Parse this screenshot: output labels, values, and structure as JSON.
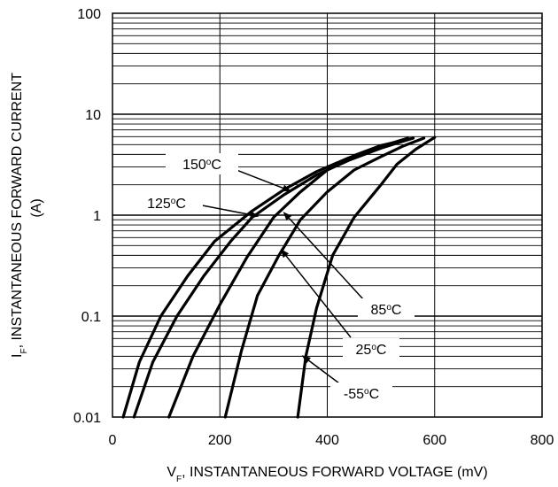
{
  "chart_data": {
    "type": "line",
    "x_axis": {
      "label_main": "V",
      "label_sub": "F",
      "label_rest": ", INSTANTANEOUS FORWARD VOLTAGE (mV)",
      "range": [
        0,
        800
      ],
      "ticks": [
        "0",
        "200",
        "400",
        "600",
        "800"
      ]
    },
    "y_axis": {
      "label_main": "I",
      "label_sub": "F",
      "label_rest": ", INSTANTANEOUS FORWARD CURRENT",
      "label_line2": "(A)",
      "scale": "log",
      "range": [
        0.01,
        100
      ],
      "ticks": [
        "0.01",
        "0.1",
        "1",
        "10",
        "100"
      ]
    },
    "grid": true,
    "series": [
      {
        "name": "150",
        "label_value": "150",
        "label_sup": "o",
        "label_unit": "C",
        "x": [
          20,
          50,
          90,
          140,
          190,
          260,
          320,
          380,
          440,
          500,
          550
        ],
        "y": [
          0.01,
          0.035,
          0.1,
          0.25,
          0.55,
          1.1,
          1.8,
          2.7,
          3.7,
          4.8,
          5.8
        ]
      },
      {
        "name": "125",
        "label_value": "125",
        "label_sup": "o",
        "label_unit": "C",
        "x": [
          40,
          75,
          120,
          170,
          220,
          260,
          320,
          380,
          440,
          500,
          560
        ],
        "y": [
          0.01,
          0.035,
          0.1,
          0.25,
          0.55,
          0.95,
          1.6,
          2.5,
          3.5,
          4.6,
          5.8
        ]
      },
      {
        "name": "85",
        "label_value": "85",
        "label_sup": "o",
        "label_unit": "C",
        "x": [
          105,
          150,
          200,
          250,
          300,
          350,
          400,
          450,
          500,
          560
        ],
        "y": [
          0.01,
          0.04,
          0.13,
          0.38,
          0.95,
          1.7,
          2.8,
          3.9,
          4.9,
          5.8
        ]
      },
      {
        "name": "25",
        "label_value": "25",
        "label_sup": "o",
        "label_unit": "C",
        "x": [
          210,
          240,
          270,
          310,
          350,
          400,
          450,
          500,
          540,
          580
        ],
        "y": [
          0.01,
          0.045,
          0.16,
          0.4,
          0.9,
          1.7,
          2.8,
          3.8,
          4.8,
          5.8
        ]
      },
      {
        "name": "-55",
        "label_value": "-55",
        "label_sup": "o",
        "label_unit": "C",
        "x": [
          345,
          360,
          380,
          410,
          450,
          500,
          530,
          565,
          600
        ],
        "y": [
          0.01,
          0.04,
          0.12,
          0.4,
          0.95,
          2.0,
          3.2,
          4.5,
          5.9
        ]
      }
    ],
    "annotations": [
      {
        "series": "150",
        "text_value": "150",
        "text_sup": "o",
        "text_unit": "C",
        "target_x": 330,
        "target_y": 1.75
      },
      {
        "series": "125",
        "text_value": "125",
        "text_sup": "o",
        "text_unit": "C",
        "target_x": 270,
        "target_y": 0.98
      },
      {
        "series": "85",
        "text_value": "85",
        "text_sup": "o",
        "text_unit": "C",
        "target_x": 320,
        "target_y": 1.05
      },
      {
        "series": "25",
        "text_value": "25",
        "text_sup": "o",
        "text_unit": "C",
        "target_x": 315,
        "target_y": 0.45
      },
      {
        "series": "-55",
        "text_value": "-55",
        "text_sup": "o",
        "text_unit": "C",
        "target_x": 355,
        "target_y": 0.04
      }
    ]
  }
}
